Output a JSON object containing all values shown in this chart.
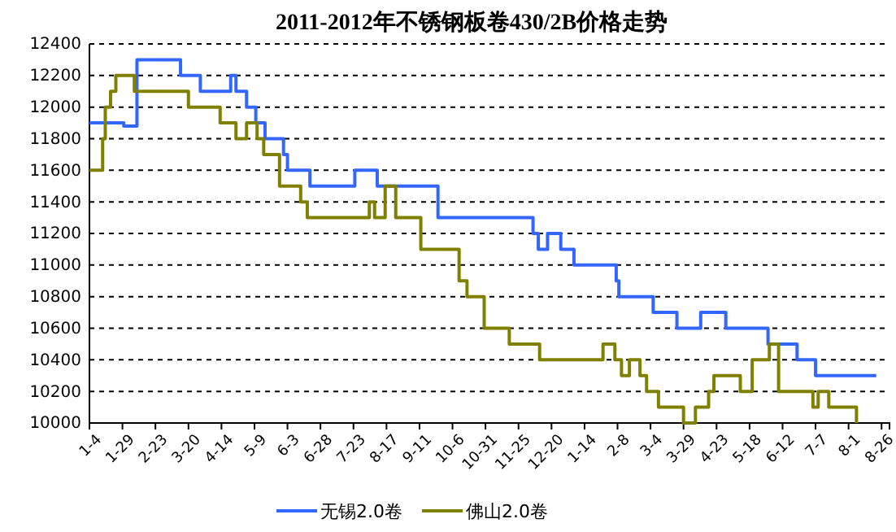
{
  "chart_data": {
    "type": "step",
    "title": "2011-2012年不锈钢板卷430/2B价格走势",
    "xlim": [
      "2011-01-04",
      "2012-09-01"
    ],
    "xticks": [
      {
        "value": "2011-01-04",
        "label": "1-4"
      },
      {
        "value": "2011-01-29",
        "label": "1-29"
      },
      {
        "value": "2011-02-23",
        "label": "2-23"
      },
      {
        "value": "2011-03-20",
        "label": "3-20"
      },
      {
        "value": "2011-04-14",
        "label": "4-14"
      },
      {
        "value": "2011-05-09",
        "label": "5-9"
      },
      {
        "value": "2011-06-03",
        "label": "6-3"
      },
      {
        "value": "2011-06-28",
        "label": "6-28"
      },
      {
        "value": "2011-07-23",
        "label": "7-23"
      },
      {
        "value": "2011-08-17",
        "label": "8-17"
      },
      {
        "value": "2011-09-11",
        "label": "9-11"
      },
      {
        "value": "2011-10-06",
        "label": "10-6"
      },
      {
        "value": "2011-10-31",
        "label": "10-31"
      },
      {
        "value": "2011-11-25",
        "label": "11-25"
      },
      {
        "value": "2011-12-20",
        "label": "12-20"
      },
      {
        "value": "2012-01-14",
        "label": "1-14"
      },
      {
        "value": "2012-02-08",
        "label": "2-8"
      },
      {
        "value": "2012-03-04",
        "label": "3-4"
      },
      {
        "value": "2012-03-29",
        "label": "3-29"
      },
      {
        "value": "2012-04-23",
        "label": "4-23"
      },
      {
        "value": "2012-05-18",
        "label": "5-18"
      },
      {
        "value": "2012-06-12",
        "label": "6-12"
      },
      {
        "value": "2012-07-07",
        "label": "7-7"
      },
      {
        "value": "2012-08-01",
        "label": "8-1"
      },
      {
        "value": "2012-08-26",
        "label": "8-26"
      }
    ],
    "ylim": [
      10000,
      12400
    ],
    "yticks": [
      10000,
      10200,
      10400,
      10600,
      10800,
      11000,
      11200,
      11400,
      11600,
      11800,
      12000,
      12200,
      12400
    ],
    "grid": "y",
    "legend": "bottom",
    "line_style": "solid",
    "series": [
      {
        "name": "无锡2.0卷",
        "color": "#3366ff",
        "x": [
          "2011-01-04",
          "2011-01-30",
          "2011-02-09",
          "2011-03-14",
          "2011-03-29",
          "2011-04-21",
          "2011-04-25",
          "2011-05-03",
          "2011-05-10",
          "2011-05-17",
          "2011-05-31",
          "2011-06-03",
          "2011-06-20",
          "2011-07-24",
          "2011-08-10",
          "2011-09-25",
          "2011-12-06",
          "2011-12-10",
          "2011-12-17",
          "2011-12-27",
          "2012-01-06",
          "2012-02-07",
          "2012-02-09",
          "2012-03-06",
          "2012-03-24",
          "2012-04-11",
          "2012-04-30",
          "2012-06-01",
          "2012-06-23",
          "2012-07-07",
          "2012-08-22"
        ],
        "values": [
          11900,
          11880,
          12300,
          12200,
          12100,
          12200,
          12100,
          12000,
          11900,
          11800,
          11700,
          11600,
          11500,
          11600,
          11500,
          11300,
          11200,
          11100,
          11200,
          11100,
          11000,
          10900,
          10800,
          10700,
          10600,
          10700,
          10600,
          10500,
          10400,
          10300,
          10300
        ]
      },
      {
        "name": "佛山2.0卷",
        "color": "#808000",
        "x": [
          "2011-01-04",
          "2011-01-14",
          "2011-01-16",
          "2011-01-20",
          "2011-01-24",
          "2011-02-07",
          "2011-03-20",
          "2011-04-13",
          "2011-04-25",
          "2011-05-03",
          "2011-05-11",
          "2011-05-16",
          "2011-05-28",
          "2011-06-13",
          "2011-06-18",
          "2011-08-04",
          "2011-08-08",
          "2011-08-16",
          "2011-08-24",
          "2011-09-12",
          "2011-10-11",
          "2011-10-17",
          "2011-10-30",
          "2011-11-18",
          "2011-12-11",
          "2012-01-28",
          "2012-02-06",
          "2012-02-11",
          "2012-02-17",
          "2012-02-25",
          "2012-03-01",
          "2012-03-10",
          "2012-03-29",
          "2012-04-07",
          "2012-04-17",
          "2012-04-21",
          "2012-05-11",
          "2012-05-20",
          "2012-06-02",
          "2012-06-09",
          "2012-07-05",
          "2012-07-09",
          "2012-07-17",
          "2012-08-07"
        ],
        "values": [
          11600,
          11800,
          12000,
          12100,
          12200,
          12100,
          12000,
          11900,
          11800,
          11900,
          11800,
          11700,
          11500,
          11400,
          11300,
          11400,
          11300,
          11500,
          11300,
          11100,
          10900,
          10800,
          10600,
          10500,
          10400,
          10500,
          10400,
          10300,
          10400,
          10300,
          10200,
          10100,
          10000,
          10100,
          10200,
          10300,
          10200,
          10400,
          10500,
          10200,
          10100,
          10200,
          10100,
          10000
        ]
      }
    ]
  }
}
